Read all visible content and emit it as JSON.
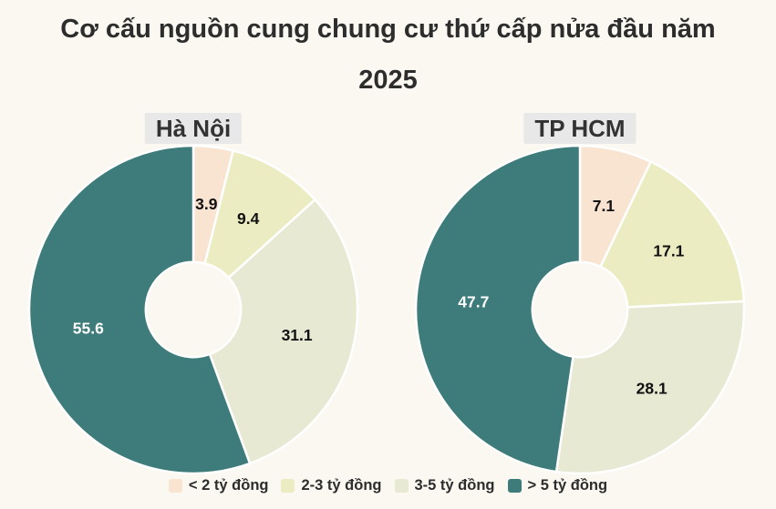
{
  "page": {
    "background": "#faf8f1"
  },
  "title": {
    "line1": "Cơ cấu nguồn cung chung cư thứ cấp nửa đầu năm",
    "line2": "2025"
  },
  "colors": {
    "title_text": "#2d2d2d",
    "chart_label_bg": "#e8e8e8",
    "chart_label_text": "#333333",
    "slice_separator": "#ffffff",
    "legend_text": "#2d2d2d",
    "peach": "#f9e3d1",
    "light_green": "#ececc3",
    "sage": "#e8e9d3",
    "teal": "#3e7b7b"
  },
  "legend": {
    "items": [
      {
        "label": "< 2 tỷ đồng",
        "color": "#f9e3d1"
      },
      {
        "label": "2-3 tỷ đồng",
        "color": "#ececc3"
      },
      {
        "label": "3-5 tỷ đồng",
        "color": "#e8e9d3"
      },
      {
        "label": "> 5 tỷ đồng",
        "color": "#3e7b7b"
      }
    ]
  },
  "chart_data": [
    {
      "type": "pie",
      "variant": "donut",
      "title": "Hà Nội",
      "categories": [
        "< 2 tỷ đồng",
        "2-3 tỷ đồng",
        "3-5 tỷ đồng",
        "> 5 tỷ đồng"
      ],
      "values": [
        3.9,
        9.4,
        31.1,
        55.6
      ],
      "colors": [
        "#f9e3d1",
        "#ececc3",
        "#e8e9d3",
        "#3e7b7b"
      ],
      "value_label_colors": [
        "#111111",
        "#111111",
        "#111111",
        "#ffffff"
      ],
      "start_angle_deg": 0,
      "direction": "clockwise",
      "inner_radius_ratio": 0.29,
      "legend_position": "bottom"
    },
    {
      "type": "pie",
      "variant": "donut",
      "title": "TP HCM",
      "categories": [
        "< 2 tỷ đồng",
        "2-3 tỷ đồng",
        "3-5 tỷ đồng",
        "> 5 tỷ đồng"
      ],
      "values": [
        7.1,
        17.1,
        28.1,
        47.7
      ],
      "colors": [
        "#f9e3d1",
        "#ececc3",
        "#e8e9d3",
        "#3e7b7b"
      ],
      "value_label_colors": [
        "#111111",
        "#111111",
        "#111111",
        "#ffffff"
      ],
      "start_angle_deg": 0,
      "direction": "clockwise",
      "inner_radius_ratio": 0.29,
      "legend_position": "bottom"
    }
  ]
}
